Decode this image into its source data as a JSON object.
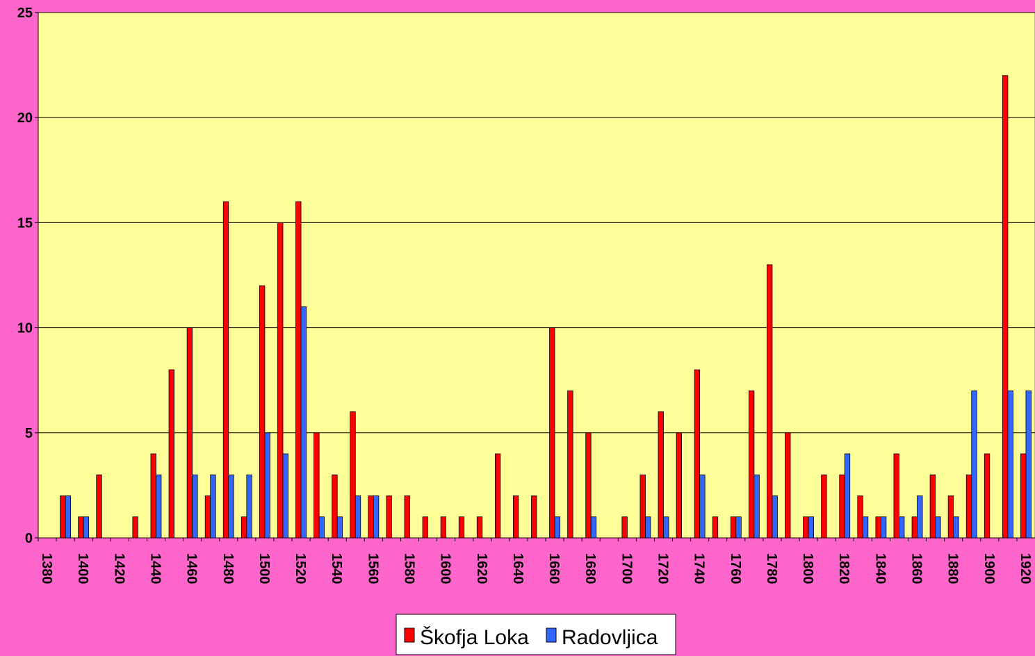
{
  "chart_data": {
    "type": "bar",
    "categories": [
      "1380",
      null,
      "1400",
      null,
      "1420",
      null,
      "1440",
      null,
      "1460",
      null,
      "1480",
      null,
      "1500",
      null,
      "1520",
      null,
      "1540",
      null,
      "1560",
      null,
      "1580",
      null,
      "1600",
      null,
      "1620",
      null,
      "1640",
      null,
      "1660",
      null,
      "1680",
      null,
      "1700",
      null,
      "1720",
      null,
      "1740",
      null,
      "1760",
      null,
      "1780",
      null,
      "1800",
      null,
      "1820",
      null,
      "1840",
      null,
      "1860",
      null,
      "1880",
      null,
      "1900",
      null,
      "1920"
    ],
    "series": [
      {
        "name": "Škofja Loka",
        "color": "#ff0000",
        "values": [
          0,
          2,
          1,
          3,
          0,
          1,
          4,
          8,
          10,
          2,
          16,
          1,
          12,
          15,
          16,
          5,
          3,
          6,
          2,
          2,
          2,
          1,
          1,
          1,
          1,
          4,
          2,
          2,
          10,
          7,
          5,
          0,
          1,
          3,
          6,
          5,
          8,
          1,
          1,
          7,
          13,
          5,
          1,
          3,
          3,
          2,
          1,
          4,
          1,
          3,
          2,
          3,
          4,
          22,
          4
        ]
      },
      {
        "name": "Radovljica",
        "color": "#3366ff",
        "values": [
          0,
          2,
          1,
          0,
          0,
          0,
          3,
          0,
          3,
          3,
          3,
          3,
          5,
          4,
          11,
          1,
          1,
          2,
          2,
          0,
          0,
          0,
          0,
          0,
          0,
          0,
          0,
          0,
          1,
          0,
          1,
          0,
          0,
          1,
          1,
          0,
          3,
          0,
          1,
          3,
          2,
          0,
          1,
          0,
          4,
          1,
          1,
          1,
          2,
          1,
          1,
          7,
          0,
          7,
          7
        ]
      }
    ],
    "ylim": [
      0,
      25
    ],
    "yticks": [
      0,
      5,
      10,
      15,
      20,
      25
    ],
    "grid": true,
    "legend": "bottom"
  }
}
